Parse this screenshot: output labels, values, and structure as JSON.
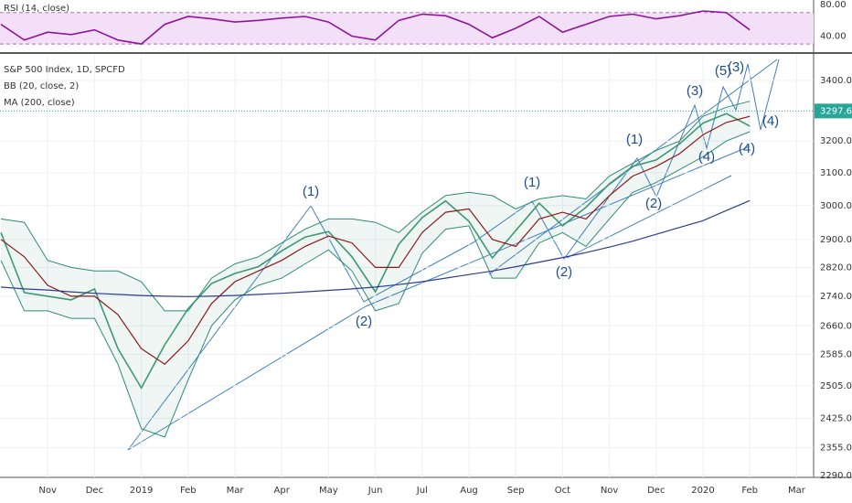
{
  "chart_data": [
    {
      "type": "line",
      "title": "RSI (14, close)",
      "categories": [
        null,
        null,
        "Nov",
        null,
        "Dec",
        null,
        "2019",
        null,
        "Feb",
        null,
        "Mar",
        null,
        "Apr",
        null,
        "May",
        null,
        "Jun",
        null,
        "Jul",
        null,
        "Aug",
        null,
        "Sep",
        null,
        "Oct",
        null,
        "Nov",
        null,
        "Dec",
        null,
        "2020",
        null,
        "Feb",
        null,
        "Mar"
      ],
      "series": [
        {
          "name": "RSI (14, close)",
          "color": "#8e1599",
          "values": [
            55,
            35,
            45,
            42,
            48,
            35,
            30,
            55,
            65,
            62,
            58,
            60,
            63,
            65,
            58,
            40,
            35,
            60,
            68,
            66,
            55,
            38,
            50,
            65,
            45,
            55,
            65,
            68,
            62,
            66,
            72,
            70,
            48,
            null,
            null
          ]
        }
      ],
      "band": [
        30,
        70
      ],
      "band_color": "#f3e0f8",
      "ylim": [
        22,
        86
      ],
      "yticks": [
        {
          "value": 80,
          "label": "80.00"
        },
        {
          "value": 40,
          "label": "40.00"
        }
      ]
    },
    {
      "type": "line",
      "title": "S&P 500 Index, 1D, SPCFD",
      "log_scale": true,
      "grid": true,
      "categories": [
        null,
        null,
        "Nov",
        null,
        "Dec",
        null,
        "2019",
        null,
        "Feb",
        null,
        "Mar",
        null,
        "Apr",
        null,
        "May",
        null,
        "Jun",
        null,
        "Jul",
        null,
        "Aug",
        null,
        "Sep",
        null,
        "Oct",
        null,
        "Nov",
        null,
        "Dec",
        null,
        "2020",
        null,
        "Feb",
        null,
        "Mar"
      ],
      "series": [
        {
          "name": "S&P 500 Index, 1D, SPCFD",
          "color": "#3f9b74",
          "values": [
            2920,
            2750,
            2740,
            2730,
            2760,
            2600,
            2500,
            2610,
            2706,
            2775,
            2803,
            2822,
            2867,
            2907,
            2923,
            2850,
            2752,
            2886,
            2964,
            3014,
            2953,
            2847,
            2926,
            3007,
            2940,
            2995,
            3066,
            3120,
            3140,
            3191,
            3258,
            3289,
            3248,
            null,
            null
          ]
        },
        {
          "name": "BB (20, close, 2)",
          "color": "#8b1a1a",
          "band_color": "#2e8b74",
          "values": [
            2900,
            2850,
            2770,
            2740,
            2740,
            2690,
            2600,
            2560,
            2620,
            2720,
            2780,
            2810,
            2840,
            2880,
            2910,
            2890,
            2820,
            2820,
            2920,
            2980,
            2990,
            2900,
            2880,
            2960,
            2980,
            2960,
            3030,
            3090,
            3120,
            3160,
            3220,
            3260,
            3280,
            null,
            null
          ],
          "upper": [
            2960,
            2950,
            2840,
            2820,
            2810,
            2810,
            2780,
            2700,
            2700,
            2790,
            2830,
            2850,
            2890,
            2930,
            2960,
            2960,
            2950,
            2920,
            2980,
            3030,
            3040,
            3030,
            2990,
            3020,
            3030,
            3020,
            3090,
            3130,
            3170,
            3200,
            3280,
            3310,
            3330,
            null,
            null
          ],
          "lower": [
            2840,
            2700,
            2700,
            2680,
            2680,
            2560,
            2400,
            2380,
            2520,
            2660,
            2730,
            2770,
            2790,
            2830,
            2870,
            2810,
            2700,
            2720,
            2860,
            2930,
            2940,
            2790,
            2790,
            2890,
            2920,
            2880,
            2960,
            3040,
            3070,
            3110,
            3150,
            3200,
            3230,
            null,
            null
          ]
        },
        {
          "name": "MA (200, close)",
          "color": "#2f3d8f",
          "values": [
            2765,
            2760,
            2757,
            2752,
            2748,
            2745,
            2742,
            2740,
            2739,
            2740,
            2742,
            2745,
            2748,
            2752,
            2756,
            2760,
            2765,
            2772,
            2780,
            2790,
            2800,
            2810,
            2822,
            2835,
            2848,
            2862,
            2878,
            2895,
            2915,
            2935,
            2955,
            2985,
            3015,
            null,
            null
          ]
        }
      ],
      "last_price": {
        "value": 3297.6,
        "label": "3297.60"
      },
      "last_price_color": "#26a69a",
      "ylim": [
        2290,
        3488
      ],
      "yticks": [
        {
          "value": 3400,
          "label": "3400.00"
        },
        {
          "value": 3200,
          "label": "3200.00"
        },
        {
          "value": 3100,
          "label": "3100.00"
        },
        {
          "value": 3000,
          "label": "3000.00"
        },
        {
          "value": 2900,
          "label": "2900.00"
        },
        {
          "value": 2820,
          "label": "2820.00"
        },
        {
          "value": 2740,
          "label": "2740.00"
        },
        {
          "value": 2660,
          "label": "2660.00"
        },
        {
          "value": 2585,
          "label": "2585.00"
        },
        {
          "value": 2505,
          "label": "2505.00"
        },
        {
          "value": 2425,
          "label": "2425.00"
        },
        {
          "value": 2355,
          "label": "2355.00"
        },
        {
          "value": 2290,
          "label": "2290.00"
        }
      ],
      "annotations": [
        "(1)",
        "(2)",
        "(1)",
        "(2)",
        "(1)",
        "(2)",
        "(3)",
        "(5)",
        "(3)",
        "(4)",
        "(4)",
        "(4)"
      ]
    }
  ]
}
